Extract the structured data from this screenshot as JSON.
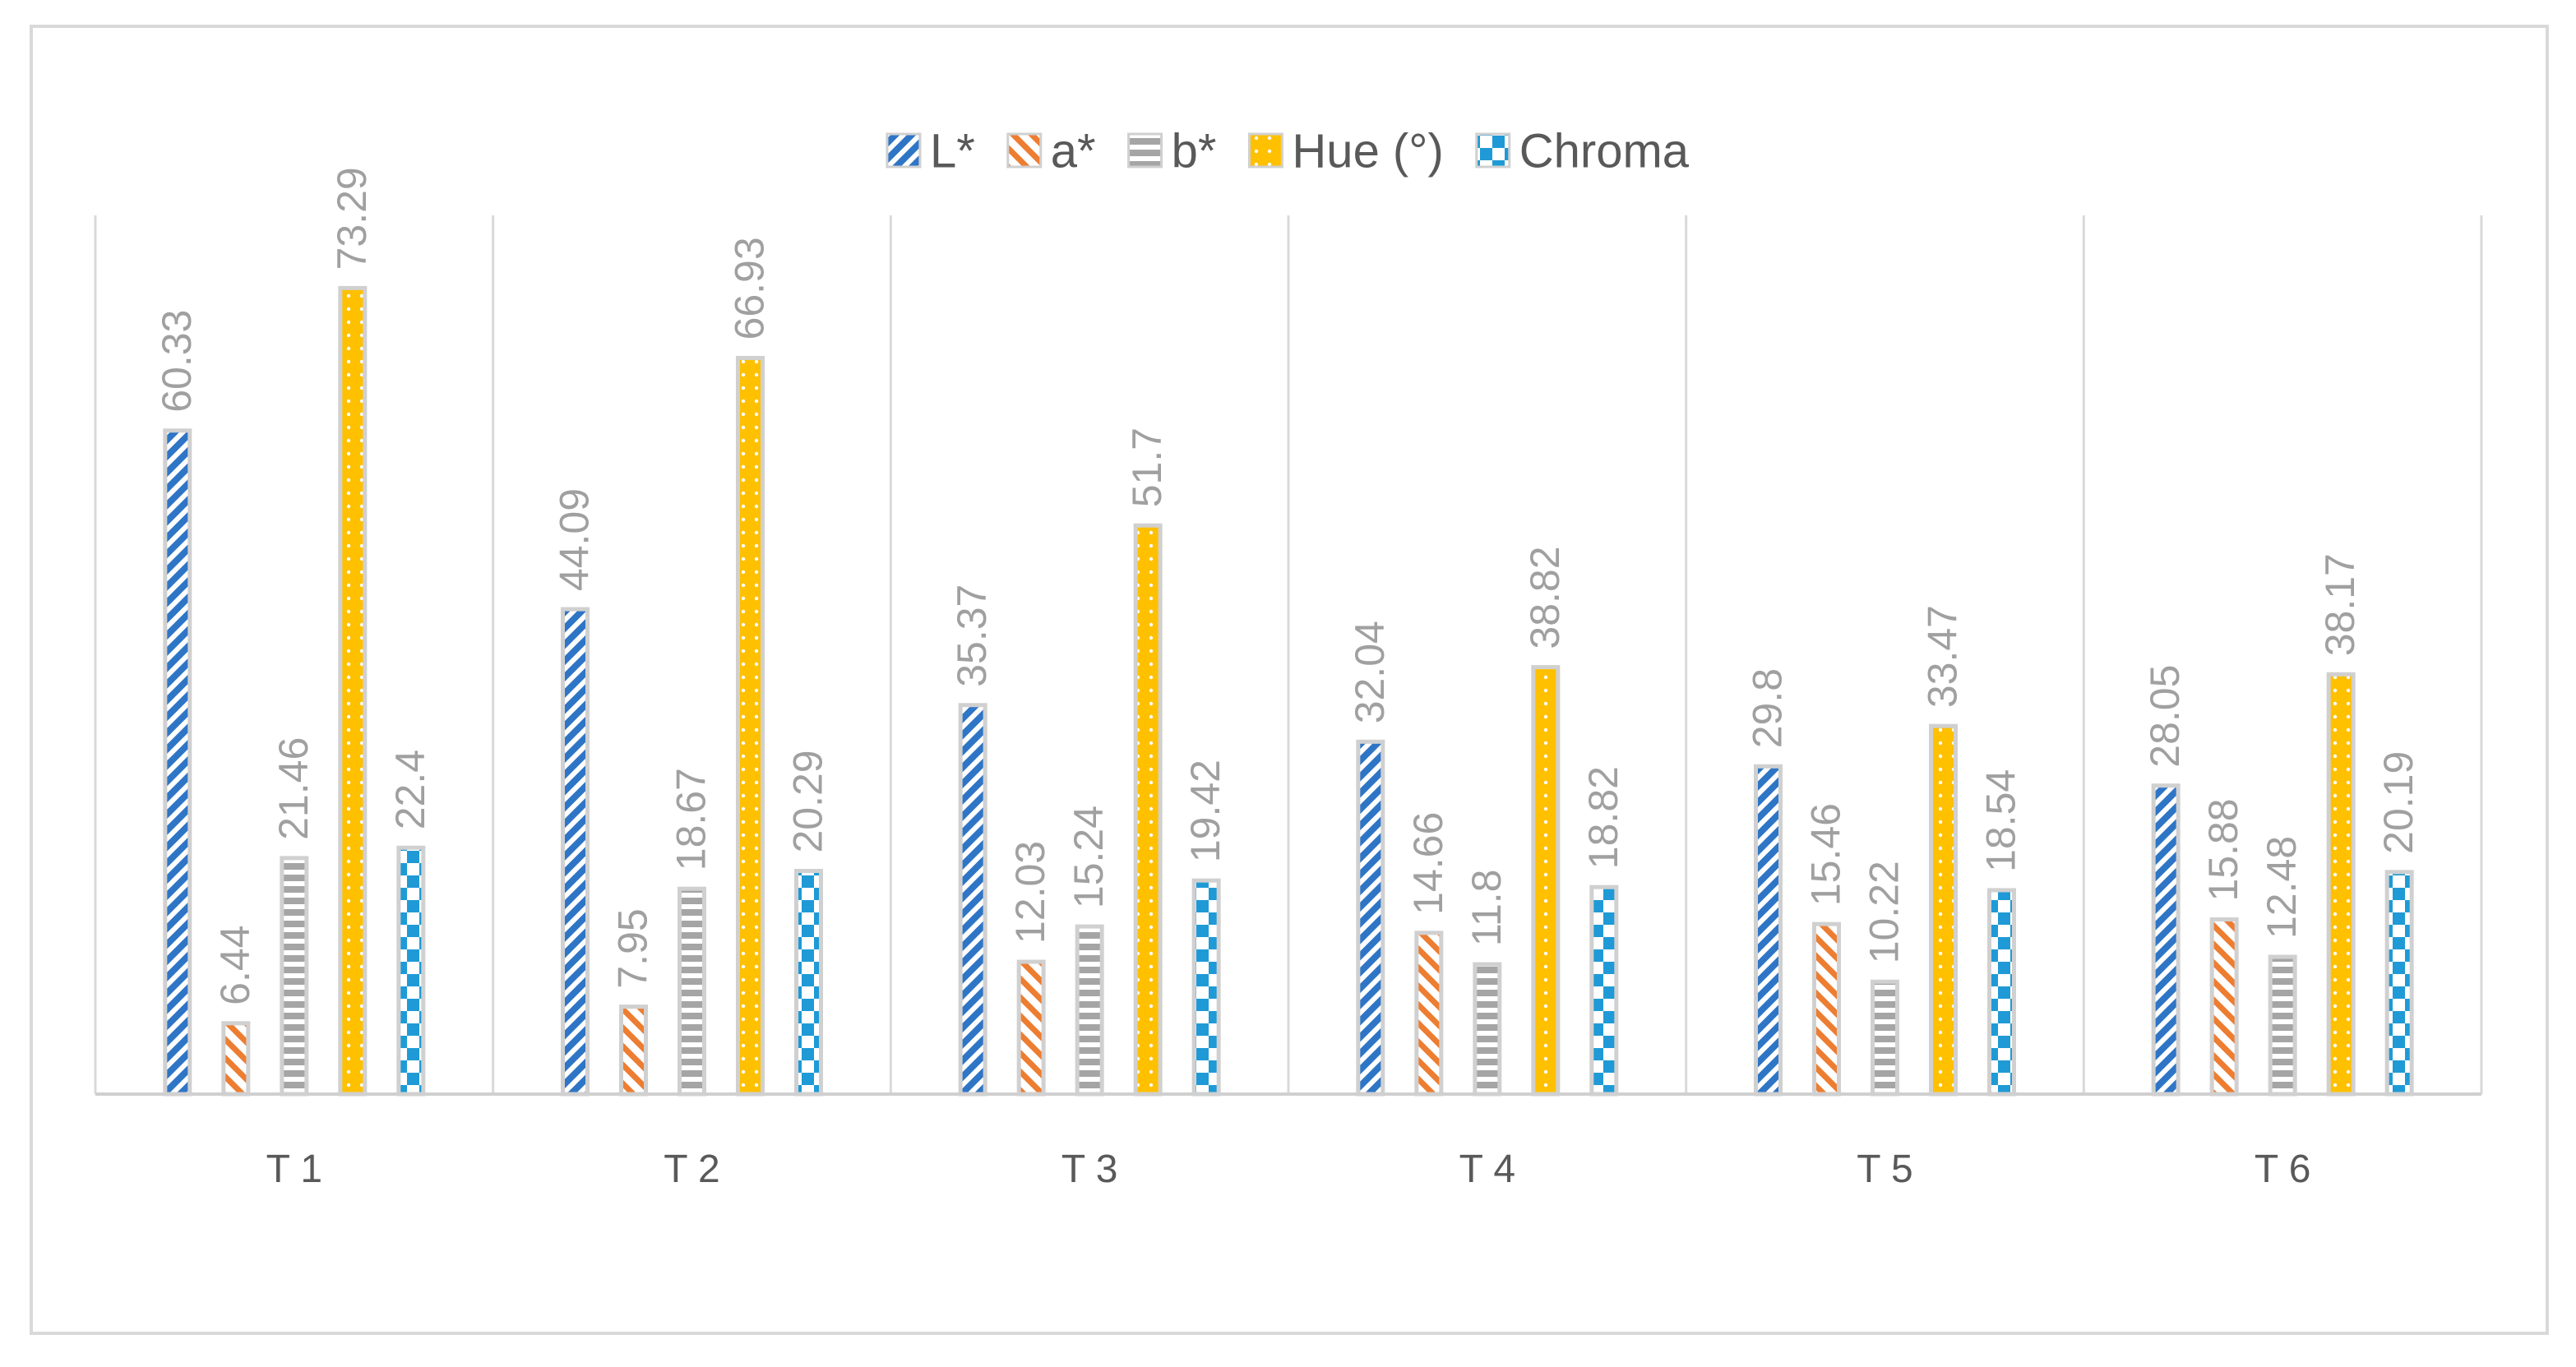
{
  "chart_data": {
    "type": "bar",
    "categories": [
      "T 1",
      "T 2",
      "T 3",
      "T 4",
      "T 5",
      "T 6"
    ],
    "series": [
      {
        "name": "L*",
        "color": "#2e75c6",
        "pattern": "diagonal-hatch",
        "values": [
          60.33,
          44.09,
          35.37,
          32.04,
          29.8,
          28.05
        ]
      },
      {
        "name": "a*",
        "color": "#ed7d31",
        "pattern": "diagonal-stripe",
        "values": [
          6.44,
          7.95,
          12.03,
          14.66,
          15.46,
          15.88
        ]
      },
      {
        "name": "b*",
        "color": "#a5a5a5",
        "pattern": "horizontal-stripe",
        "values": [
          21.46,
          18.67,
          15.24,
          11.8,
          10.22,
          12.48
        ]
      },
      {
        "name": "Hue (°)",
        "color": "#ffc000",
        "pattern": "dotted",
        "values": [
          73.29,
          66.93,
          51.7,
          38.82,
          33.47,
          38.17
        ]
      },
      {
        "name": "Chroma",
        "color": "#1f9ad6",
        "pattern": "checkerboard",
        "values": [
          22.4,
          20.29,
          19.42,
          18.82,
          18.54,
          20.19
        ]
      }
    ],
    "value_labels": [
      [
        "60.33",
        "44.09",
        "35.37",
        "32.04",
        "29.8",
        "28.05"
      ],
      [
        "6.44",
        "7.95",
        "12.03",
        "14.66",
        "15.46",
        "15.88"
      ],
      [
        "21.46",
        "18.67",
        "15.24",
        "11.8",
        "10.22",
        "12.48"
      ],
      [
        "73.29",
        "66.93",
        "51.7",
        "38.82",
        "33.47",
        "38.17"
      ],
      [
        "22.4",
        "20.29",
        "19.42",
        "18.82",
        "18.54",
        "20.19"
      ]
    ],
    "ylim": [
      0,
      80
    ],
    "y_axis_visible": false,
    "grid": "vertical category separators",
    "legend_position": "top-center",
    "data_label_color": "#a0a0a0",
    "bar_border_color": "#d0d0d0",
    "axis_color": "#d0d0d0",
    "title": "",
    "xlabel": "",
    "ylabel": ""
  }
}
